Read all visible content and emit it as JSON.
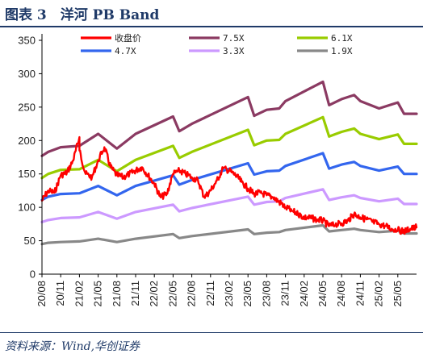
{
  "figure": {
    "title": "图表 3　洋河 PB Band",
    "source": "资料来源：Wind,华创证券"
  },
  "chart_data": {
    "type": "line",
    "title": "洋河 PB Band",
    "xlabel": "",
    "ylabel": "",
    "ylim": [
      0,
      350
    ],
    "yticks": [
      0,
      50,
      100,
      150,
      200,
      250,
      300,
      350
    ],
    "xticks": [
      "20/08",
      "20/11",
      "21/02",
      "21/05",
      "21/08",
      "21/11",
      "22/02",
      "22/05",
      "22/08",
      "22/11",
      "23/02",
      "23/05",
      "23/08",
      "23/11",
      "24/02",
      "24/05",
      "24/08",
      "24/11",
      "25/02",
      "25/05"
    ],
    "x_end": "25/08",
    "legend_position": "top",
    "grid": false,
    "series": [
      {
        "name": "收盘价",
        "color": "#ff0000",
        "kind": "price",
        "points": [
          [
            "20/08",
            110
          ],
          [
            "20/09",
            125
          ],
          [
            "20/10",
            122
          ],
          [
            "20/11",
            148
          ],
          [
            "20/12",
            152
          ],
          [
            "21/01",
            170
          ],
          [
            "21/02",
            205
          ],
          [
            "21/02",
            185
          ],
          [
            "21/03",
            150
          ],
          [
            "21/04",
            145
          ],
          [
            "21/05",
            170
          ],
          [
            "21/06",
            190
          ],
          [
            "21/07",
            160
          ],
          [
            "21/08",
            148
          ],
          [
            "21/09",
            145
          ],
          [
            "21/10",
            150
          ],
          [
            "21/11",
            155
          ],
          [
            "21/12",
            160
          ],
          [
            "22/01",
            148
          ],
          [
            "22/02",
            135
          ],
          [
            "22/03",
            115
          ],
          [
            "22/04",
            120
          ],
          [
            "22/05",
            150
          ],
          [
            "22/06",
            155
          ],
          [
            "22/07",
            150
          ],
          [
            "22/08",
            145
          ],
          [
            "22/09",
            140
          ],
          [
            "22/10",
            115
          ],
          [
            "22/11",
            125
          ],
          [
            "22/12",
            140
          ],
          [
            "23/01",
            158
          ],
          [
            "23/02",
            155
          ],
          [
            "23/03",
            148
          ],
          [
            "23/04",
            138
          ],
          [
            "23/05",
            128
          ],
          [
            "23/06",
            120
          ],
          [
            "23/07",
            122
          ],
          [
            "23/08",
            118
          ],
          [
            "23/09",
            115
          ],
          [
            "23/10",
            108
          ],
          [
            "23/11",
            100
          ],
          [
            "23/12",
            95
          ],
          [
            "24/01",
            90
          ],
          [
            "24/02",
            85
          ],
          [
            "24/03",
            84
          ],
          [
            "24/04",
            82
          ],
          [
            "24/05",
            80
          ],
          [
            "24/06",
            72
          ],
          [
            "24/07",
            74
          ],
          [
            "24/08",
            76
          ],
          [
            "24/09",
            80
          ],
          [
            "24/10",
            90
          ],
          [
            "24/11",
            85
          ],
          [
            "24/12",
            82
          ],
          [
            "25/01",
            78
          ],
          [
            "25/02",
            75
          ],
          [
            "25/03",
            72
          ],
          [
            "25/04",
            68
          ],
          [
            "25/05",
            66
          ],
          [
            "25/06",
            64
          ],
          [
            "25/07",
            68
          ],
          [
            "25/08",
            70
          ]
        ]
      },
      {
        "name": "7.5X",
        "color": "#8b3a62",
        "kind": "band",
        "points": [
          [
            "20/08",
            177
          ],
          [
            "20/09",
            183
          ],
          [
            "20/11",
            190
          ],
          [
            "21/02",
            192
          ],
          [
            "21/05",
            210
          ],
          [
            "21/08",
            188
          ],
          [
            "21/11",
            210
          ],
          [
            "22/05",
            236
          ],
          [
            "22/06",
            214
          ],
          [
            "22/08",
            225
          ],
          [
            "23/05",
            265
          ],
          [
            "23/06",
            237
          ],
          [
            "23/08",
            246
          ],
          [
            "23/10",
            248
          ],
          [
            "23/11",
            259
          ],
          [
            "24/05",
            288
          ],
          [
            "24/06",
            253
          ],
          [
            "24/08",
            262
          ],
          [
            "24/10",
            268
          ],
          [
            "24/11",
            259
          ],
          [
            "25/02",
            248
          ],
          [
            "25/05",
            257
          ],
          [
            "25/06",
            240
          ],
          [
            "25/08",
            240
          ]
        ]
      },
      {
        "name": "6.1X",
        "color": "#99cc00",
        "kind": "band",
        "points": [
          [
            "20/08",
            144
          ],
          [
            "20/09",
            150
          ],
          [
            "20/11",
            156
          ],
          [
            "21/02",
            157
          ],
          [
            "21/05",
            171
          ],
          [
            "21/08",
            154
          ],
          [
            "21/11",
            171
          ],
          [
            "22/05",
            192
          ],
          [
            "22/06",
            174
          ],
          [
            "22/08",
            183
          ],
          [
            "23/05",
            216
          ],
          [
            "23/06",
            193
          ],
          [
            "23/08",
            200
          ],
          [
            "23/10",
            201
          ],
          [
            "23/11",
            210
          ],
          [
            "24/05",
            235
          ],
          [
            "24/06",
            206
          ],
          [
            "24/08",
            213
          ],
          [
            "24/10",
            218
          ],
          [
            "24/11",
            210
          ],
          [
            "25/02",
            202
          ],
          [
            "25/05",
            209
          ],
          [
            "25/06",
            195
          ],
          [
            "25/08",
            195
          ]
        ]
      },
      {
        "name": "4.7X",
        "color": "#3366ee",
        "kind": "band",
        "points": [
          [
            "20/08",
            111
          ],
          [
            "20/09",
            116
          ],
          [
            "20/11",
            120
          ],
          [
            "21/02",
            121
          ],
          [
            "21/05",
            132
          ],
          [
            "21/08",
            118
          ],
          [
            "21/11",
            132
          ],
          [
            "22/05",
            148
          ],
          [
            "22/06",
            134
          ],
          [
            "22/08",
            141
          ],
          [
            "23/05",
            166
          ],
          [
            "23/06",
            149
          ],
          [
            "23/08",
            154
          ],
          [
            "23/10",
            155
          ],
          [
            "23/11",
            162
          ],
          [
            "24/05",
            181
          ],
          [
            "24/06",
            158
          ],
          [
            "24/08",
            164
          ],
          [
            "24/10",
            168
          ],
          [
            "24/11",
            162
          ],
          [
            "25/02",
            155
          ],
          [
            "25/05",
            161
          ],
          [
            "25/06",
            150
          ],
          [
            "25/08",
            150
          ]
        ]
      },
      {
        "name": "3.3X",
        "color": "#cc99ff",
        "kind": "band",
        "points": [
          [
            "20/08",
            78
          ],
          [
            "20/09",
            81
          ],
          [
            "20/11",
            84
          ],
          [
            "21/02",
            85
          ],
          [
            "21/05",
            93
          ],
          [
            "21/08",
            83
          ],
          [
            "21/11",
            93
          ],
          [
            "22/05",
            104
          ],
          [
            "22/06",
            94
          ],
          [
            "22/08",
            99
          ],
          [
            "23/05",
            116
          ],
          [
            "23/06",
            104
          ],
          [
            "23/08",
            108
          ],
          [
            "23/10",
            109
          ],
          [
            "23/11",
            114
          ],
          [
            "24/05",
            127
          ],
          [
            "24/06",
            111
          ],
          [
            "24/08",
            115
          ],
          [
            "24/10",
            118
          ],
          [
            "24/11",
            114
          ],
          [
            "25/02",
            109
          ],
          [
            "25/05",
            113
          ],
          [
            "25/06",
            105
          ],
          [
            "25/08",
            105
          ]
        ]
      },
      {
        "name": "1.9X",
        "color": "#888888",
        "kind": "band",
        "points": [
          [
            "20/08",
            45
          ],
          [
            "20/09",
            47
          ],
          [
            "20/11",
            48
          ],
          [
            "21/02",
            49
          ],
          [
            "21/05",
            53
          ],
          [
            "21/08",
            48
          ],
          [
            "21/11",
            53
          ],
          [
            "22/05",
            60
          ],
          [
            "22/06",
            54
          ],
          [
            "22/08",
            57
          ],
          [
            "23/05",
            67
          ],
          [
            "23/06",
            60
          ],
          [
            "23/08",
            62
          ],
          [
            "23/10",
            63
          ],
          [
            "23/11",
            66
          ],
          [
            "24/05",
            73
          ],
          [
            "24/06",
            64
          ],
          [
            "24/08",
            66
          ],
          [
            "24/10",
            68
          ],
          [
            "24/11",
            66
          ],
          [
            "25/02",
            63
          ],
          [
            "25/05",
            65
          ],
          [
            "25/06",
            61
          ],
          [
            "25/08",
            61
          ]
        ]
      }
    ]
  }
}
